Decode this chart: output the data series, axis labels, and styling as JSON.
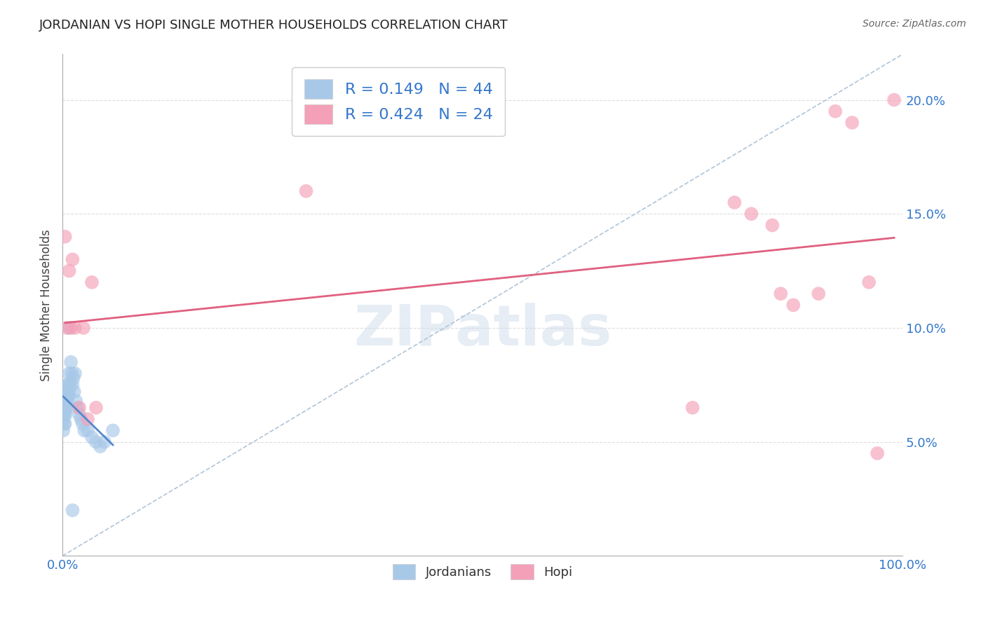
{
  "title": "JORDANIAN VS HOPI SINGLE MOTHER HOUSEHOLDS CORRELATION CHART",
  "source": "Source: ZipAtlas.com",
  "ylabel": "Single Mother Households",
  "xlim": [
    0.0,
    1.0
  ],
  "ylim": [
    0.0,
    0.22
  ],
  "xticks": [
    0.0,
    1.0
  ],
  "xticklabels": [
    "0.0%",
    "100.0%"
  ],
  "yticks": [
    0.05,
    0.1,
    0.15,
    0.2
  ],
  "yticklabels": [
    "5.0%",
    "10.0%",
    "15.0%",
    "20.0%"
  ],
  "jordanian_color": "#a8c8e8",
  "hopi_color": "#f4a0b8",
  "trend_jordan_color": "#5588cc",
  "trend_hopi_color": "#e06080",
  "diag_line_color": "#b0c4d8",
  "R_jordan": 0.149,
  "N_jordan": 44,
  "R_hopi": 0.424,
  "N_hopi": 24,
  "jordan_x": [
    0.001,
    0.001,
    0.001,
    0.002,
    0.002,
    0.002,
    0.002,
    0.003,
    0.003,
    0.003,
    0.003,
    0.004,
    0.004,
    0.004,
    0.005,
    0.005,
    0.005,
    0.006,
    0.006,
    0.007,
    0.007,
    0.008,
    0.008,
    0.009,
    0.01,
    0.011,
    0.012,
    0.013,
    0.014,
    0.015,
    0.016,
    0.018,
    0.02,
    0.022,
    0.024,
    0.026,
    0.03,
    0.035,
    0.04,
    0.045,
    0.05,
    0.06,
    0.008,
    0.012
  ],
  "jordan_y": [
    0.065,
    0.06,
    0.055,
    0.068,
    0.065,
    0.062,
    0.058,
    0.07,
    0.065,
    0.063,
    0.058,
    0.072,
    0.068,
    0.062,
    0.075,
    0.07,
    0.065,
    0.072,
    0.068,
    0.075,
    0.07,
    0.08,
    0.072,
    0.075,
    0.085,
    0.08,
    0.075,
    0.078,
    0.072,
    0.08,
    0.068,
    0.065,
    0.062,
    0.06,
    0.058,
    0.055,
    0.055,
    0.052,
    0.05,
    0.048,
    0.05,
    0.055,
    0.1,
    0.02
  ],
  "hopi_x": [
    0.003,
    0.005,
    0.008,
    0.01,
    0.012,
    0.015,
    0.02,
    0.025,
    0.03,
    0.035,
    0.04,
    0.29,
    0.75,
    0.8,
    0.82,
    0.845,
    0.855,
    0.87,
    0.9,
    0.92,
    0.94,
    0.96,
    0.97,
    0.99
  ],
  "hopi_y": [
    0.14,
    0.1,
    0.125,
    0.1,
    0.13,
    0.1,
    0.065,
    0.1,
    0.06,
    0.12,
    0.065,
    0.16,
    0.065,
    0.155,
    0.15,
    0.145,
    0.115,
    0.11,
    0.115,
    0.195,
    0.19,
    0.12,
    0.045,
    0.2
  ],
  "watermark": "ZIPatlas",
  "background_color": "#ffffff",
  "grid_color": "#dddddd",
  "legend_labels": [
    "Jordanians",
    "Hopi"
  ]
}
